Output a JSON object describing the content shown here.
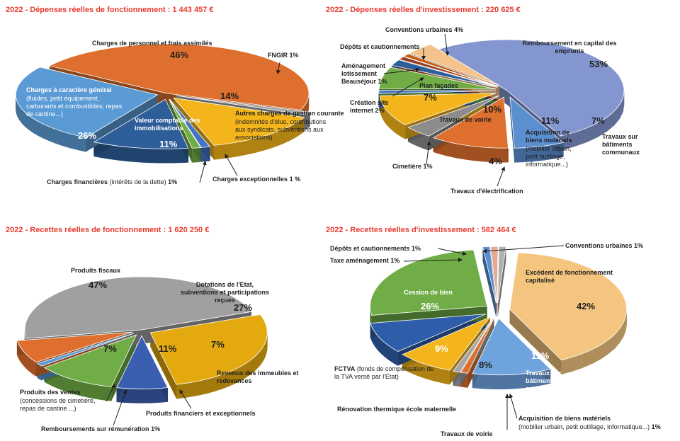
{
  "chart_data": [
    {
      "type": "pie",
      "title": "2022 - Dépenses réelles de fonctionnement : 1 443 457 €",
      "slices": [
        {
          "name": "Charges de personnel et frais assimilés",
          "value": 46,
          "color": "#de6f2e"
        },
        {
          "name": "FNGIR",
          "value": 1,
          "color": "#a5a5a5"
        },
        {
          "name": "Autres charges de gestion courante",
          "value": 14,
          "color": "#f3b51b"
        },
        {
          "name": "Charges exceptionnelles",
          "value": 1,
          "color": "#4472c4"
        },
        {
          "name": "Charges financières",
          "value": 1,
          "color": "#70ad47"
        },
        {
          "name": "Valeur comptable des immobilisations",
          "value": 11,
          "color": "#2e5e9a"
        },
        {
          "name": "Charges à caractère général",
          "value": 26,
          "color": "#5b9bd5"
        }
      ]
    },
    {
      "type": "pie",
      "title": "2022 - Dépenses réelles d'investissement : 220 625 €",
      "slices": [
        {
          "name": "Remboursement en capital des emprunts",
          "value": 53,
          "color": "#8496d0"
        },
        {
          "name": "Travaux sur bâtiments communaux",
          "value": 7,
          "color": "#5b8fd0"
        },
        {
          "name": "Acquisition de biens matériels",
          "value": 11,
          "color": "#de6f2e"
        },
        {
          "name": "Travaux d'électrification",
          "value": 4,
          "color": "#8c8c8c"
        },
        {
          "name": "Travaux de voirie",
          "value": 10,
          "color": "#f3b51b"
        },
        {
          "name": "Cimetière",
          "value": 1,
          "color": "#4472c4"
        },
        {
          "name": "Plan façades",
          "value": 7,
          "color": "#70ad47"
        },
        {
          "name": "Création site internet",
          "value": 2,
          "color": "#2e5e9a"
        },
        {
          "name": "Aménagement lotissement Beauséjour",
          "value": 1,
          "color": "#943b20"
        },
        {
          "name": "Dépôts et cautionnements",
          "value": 1,
          "color": "#c55a11"
        },
        {
          "name": "Conventions urbaines",
          "value": 4,
          "color": "#f4c38c"
        }
      ]
    },
    {
      "type": "pie",
      "title": "2022 - Recettes réelles de fonctionnement : 1 620 250 €",
      "slices": [
        {
          "name": "Dotations de l'Etat, subventions et participations reçues",
          "value": 27,
          "color": "#e3a90f"
        },
        {
          "name": "Revenus des immeubles et redevances",
          "value": 7,
          "color": "#3a5fb0"
        },
        {
          "name": "Produits financiers et exceptionnels",
          "value": 11,
          "color": "#70ad47"
        },
        {
          "name": "Remboursements sur rémunération",
          "value": 1,
          "color": "#5b9bd5"
        },
        {
          "name": "Produits des ventes",
          "value": 7,
          "color": "#de6f2e"
        },
        {
          "name": "Produits fiscaux",
          "value": 47,
          "color": "#a0a0a0"
        }
      ]
    },
    {
      "type": "pie",
      "title": "2022 - Recettes réelles d'investissement : 582 464 €",
      "slices": [
        {
          "name": "Excédent de fonctionnement capitalisé",
          "value": 42,
          "color": "#f4c57e"
        },
        {
          "name": "Travaux sur bâtiments communaux",
          "value": 11,
          "color": "#6fa3de"
        },
        {
          "name": "Acquisition de biens matériels",
          "value": 1,
          "color": "#de6f2e"
        },
        {
          "name": "Travaux de voirie",
          "value": 1,
          "color": "#a5a5a5"
        },
        {
          "name": "Rénovation thermique école maternelle",
          "value": 8,
          "color": "#f3b51b"
        },
        {
          "name": "FCTVA",
          "value": 9,
          "color": "#2e5eaa"
        },
        {
          "name": "Cession de bien",
          "value": 26,
          "color": "#70ad47"
        },
        {
          "name": "Taxe aménagement",
          "value": 1,
          "color": "#5b8fd0"
        },
        {
          "name": "Dépôts et cautionnements",
          "value": 1,
          "color": "#e8a88f"
        },
        {
          "name": "Conventions urbaines",
          "value": 1,
          "color": "#b0b0b0"
        }
      ]
    }
  ],
  "labels": {
    "p0": {
      "personnel": "Charges de personnel et frais assimilés",
      "personnel_pct": "46%",
      "fngir": "FNGIR",
      "fngir_pct": "1%",
      "general": "Charges à caractère général",
      "general_desc": "(fluides, petit équipement, carburants et combustibles, repas de cantine...)",
      "general_pct": "26%",
      "immob": "Valeur comptable des immobilisations",
      "immob_pct": "11%",
      "autres_pct": "14%",
      "autres": "Autres charges de gestion courante",
      "autres_desc": "(indemnités d'élus, contributions aux syndicats, subventions aux associations)",
      "financieres": "Charges financières",
      "financieres_desc": "(intérêts de la dette)",
      "financieres_pct": "1%",
      "exceptionnelles": "Charges exceptionnelles",
      "exceptionnelles_pct": "1 %"
    },
    "p1": {
      "conventions": "Conventions urbaines 4%",
      "depots": "Dépôts et cautionnements",
      "amenagement": "Aménagement lotissement Beauséjour",
      "amenagement_pct": "1%",
      "creation": "Création site internet",
      "creation_pct": "2%",
      "rembours": "Remboursement en capital des emprunts",
      "rembours_pct": "53%",
      "facades": "Plan façades",
      "facades_pct": "7%",
      "voirie_pct": "10%",
      "voirie": "Travaux de voirie",
      "acq_pct": "11%",
      "acq": "Acquisition de biens matériels",
      "acq_desc": "(mobilier urbain, petit outillage, informatique...)",
      "bat_pct": "7%",
      "bat": "Travaux sur bâtiments communaux",
      "elec_pct": "4%",
      "elec": "Travaux d'électrification",
      "cimetiere": "Cimetière",
      "cimetiere_pct": "1%"
    },
    "p2": {
      "fiscaux": "Produits fiscaux",
      "fiscaux_pct": "47%",
      "dotations": "Dotations de l'Etat, subventions et participations reçues",
      "dotations_pct": "27%",
      "ventes_pct": "7%",
      "financiers_pct": "11%",
      "revenus_pct": "7%",
      "revenus": "Revenus des immeubles et redevances",
      "ventes": "Produits des ventes",
      "ventes_desc": "(concessions de cimetière, repas de cantine ...)",
      "financiers": "Produits financiers et exceptionnels",
      "remb": "Remboursements sur rémunération",
      "remb_pct": "1%"
    },
    "p3": {
      "depots": "Dépôts et cautionnements",
      "depots_pct": "1%",
      "taxe": "Taxe aménagement",
      "taxe_pct": "1%",
      "conventions": "Conventions urbaines",
      "conventions_pct": "1%",
      "excedent": "Excédent de fonctionnement capitalisé",
      "excedent_pct": "42%",
      "cession": "Cession de bien",
      "cession_pct": "26%",
      "fctva_pct": "9%",
      "reno_pct": "8%",
      "bat_pct": "11%",
      "bat": "Travaux sur bâtiments communaux",
      "fctva": "FCTVA",
      "fctva_desc": "(fonds de compensation de la TVA versé par l'Etat)",
      "reno": "Rénovation thermique école maternelle",
      "acq": "Acquisition de biens matériels",
      "acq_desc": "(mobilier urbain, petit outillage, informatique...)",
      "acq_pct": "1%",
      "voirie": "Travaux de voirie"
    }
  }
}
